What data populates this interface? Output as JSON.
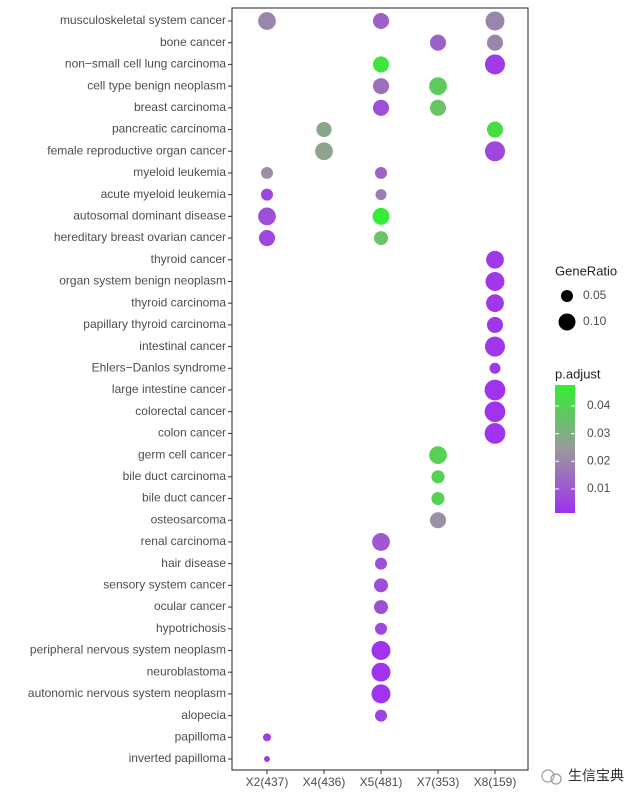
{
  "chart_data": {
    "type": "dotplot",
    "categories": [
      "musculoskeletal system cancer",
      "bone cancer",
      "non−small cell lung carcinoma",
      "cell type benign neoplasm",
      "breast carcinoma",
      "pancreatic carcinoma",
      "female reproductive organ cancer",
      "myeloid leukemia",
      "acute myeloid leukemia",
      "autosomal dominant disease",
      "hereditary breast ovarian cancer",
      "thyroid cancer",
      "organ system benign neoplasm",
      "thyroid carcinoma",
      "papillary thyroid carcinoma",
      "intestinal cancer",
      "Ehlers−Danlos syndrome",
      "large intestine cancer",
      "colorectal cancer",
      "colon cancer",
      "germ cell cancer",
      "bile duct carcinoma",
      "bile duct cancer",
      "osteosarcoma",
      "renal carcinoma",
      "hair disease",
      "sensory system cancer",
      "ocular cancer",
      "hypotrichosis",
      "peripheral nervous system neoplasm",
      "neuroblastoma",
      "autonomic nervous system neoplasm",
      "alopecia",
      "papilloma",
      "inverted papilloma"
    ],
    "series": [
      {
        "name": "X2(437)",
        "gene_ratio": [
          0.11,
          null,
          null,
          null,
          null,
          null,
          null,
          0.05,
          0.05,
          0.11,
          0.09,
          null,
          null,
          null,
          null,
          null,
          null,
          null,
          null,
          null,
          null,
          null,
          null,
          null,
          null,
          null,
          null,
          null,
          null,
          null,
          null,
          null,
          null,
          0.022,
          0.0125
        ],
        "p_adjust": [
          0.02,
          null,
          null,
          null,
          null,
          null,
          null,
          0.022,
          0.006,
          0.008,
          0.006,
          null,
          null,
          null,
          null,
          null,
          null,
          null,
          null,
          null,
          null,
          null,
          null,
          null,
          null,
          null,
          null,
          null,
          null,
          null,
          null,
          null,
          null,
          0.004,
          0.004
        ]
      },
      {
        "name": "X4(436)",
        "gene_ratio": [
          null,
          null,
          null,
          null,
          null,
          0.08,
          0.11,
          null,
          null,
          null,
          null,
          null,
          null,
          null,
          null,
          null,
          null,
          null,
          null,
          null,
          null,
          null,
          null,
          null,
          null,
          null,
          null,
          null,
          null,
          null,
          null,
          null,
          null,
          null,
          null
        ],
        "p_adjust": [
          null,
          null,
          null,
          null,
          null,
          0.028,
          0.027,
          null,
          null,
          null,
          null,
          null,
          null,
          null,
          null,
          null,
          null,
          null,
          null,
          null,
          null,
          null,
          null,
          null,
          null,
          null,
          null,
          null,
          null,
          null,
          null,
          null,
          null,
          null,
          null
        ]
      },
      {
        "name": "X5(481)",
        "gene_ratio": [
          0.09,
          null,
          0.09,
          0.09,
          0.09,
          null,
          null,
          0.05,
          0.042,
          0.1,
          0.068,
          null,
          null,
          null,
          null,
          null,
          null,
          null,
          null,
          null,
          null,
          null,
          null,
          null,
          0.11,
          0.05,
          0.068,
          0.068,
          0.05,
          0.125,
          0.125,
          0.125,
          0.05,
          null,
          null
        ],
        "p_adjust": [
          0.012,
          null,
          0.045,
          0.015,
          0.008,
          null,
          null,
          0.012,
          0.018,
          0.047,
          0.036,
          null,
          null,
          null,
          null,
          null,
          null,
          null,
          null,
          null,
          null,
          null,
          null,
          null,
          0.01,
          0.008,
          0.008,
          0.008,
          0.006,
          0.002,
          0.002,
          0.002,
          0.005,
          null,
          null
        ]
      },
      {
        "name": "X7(353)",
        "gene_ratio": [
          null,
          0.09,
          null,
          0.11,
          0.09,
          null,
          null,
          null,
          null,
          null,
          null,
          null,
          null,
          null,
          null,
          null,
          null,
          null,
          null,
          null,
          0.11,
          0.06,
          0.06,
          0.09,
          null,
          null,
          null,
          null,
          null,
          null,
          null,
          null,
          null,
          null,
          null
        ],
        "p_adjust": [
          null,
          0.012,
          null,
          0.038,
          0.036,
          null,
          null,
          null,
          null,
          null,
          null,
          null,
          null,
          null,
          null,
          null,
          null,
          null,
          null,
          null,
          0.04,
          0.04,
          0.04,
          0.022,
          null,
          null,
          null,
          null,
          null,
          null,
          null,
          null,
          null,
          null,
          null
        ]
      },
      {
        "name": "X8(159)",
        "gene_ratio": [
          0.125,
          0.09,
          0.14,
          null,
          null,
          0.09,
          0.14,
          null,
          null,
          null,
          null,
          0.11,
          0.125,
          0.11,
          0.09,
          0.14,
          0.042,
          0.15,
          0.15,
          0.15,
          null,
          null,
          null,
          null,
          null,
          null,
          null,
          null,
          null,
          null,
          null,
          null,
          null,
          null,
          null
        ],
        "p_adjust": [
          0.02,
          0.02,
          0.004,
          null,
          null,
          0.043,
          0.006,
          null,
          null,
          null,
          null,
          0.003,
          0.003,
          0.003,
          0.003,
          0.003,
          0.003,
          0.002,
          0.002,
          0.002,
          null,
          null,
          null,
          null,
          null,
          null,
          null,
          null,
          null,
          null,
          null,
          null,
          null,
          null,
          null
        ]
      }
    ],
    "size_legend": {
      "title": "GeneRatio",
      "values": [
        0.05,
        {
          "value": 0.1,
          "label": "0.10"
        }
      ]
    },
    "color_legend": {
      "title": "p.adjust",
      "ticks": [
        0.01,
        0.02,
        0.03,
        0.04
      ],
      "colorlim": [
        0.0013,
        0.0476
      ],
      "colors": [
        "#a030f0",
        "#9a9a9a",
        "#33ee33"
      ]
    },
    "watermark": "生信宝典"
  }
}
